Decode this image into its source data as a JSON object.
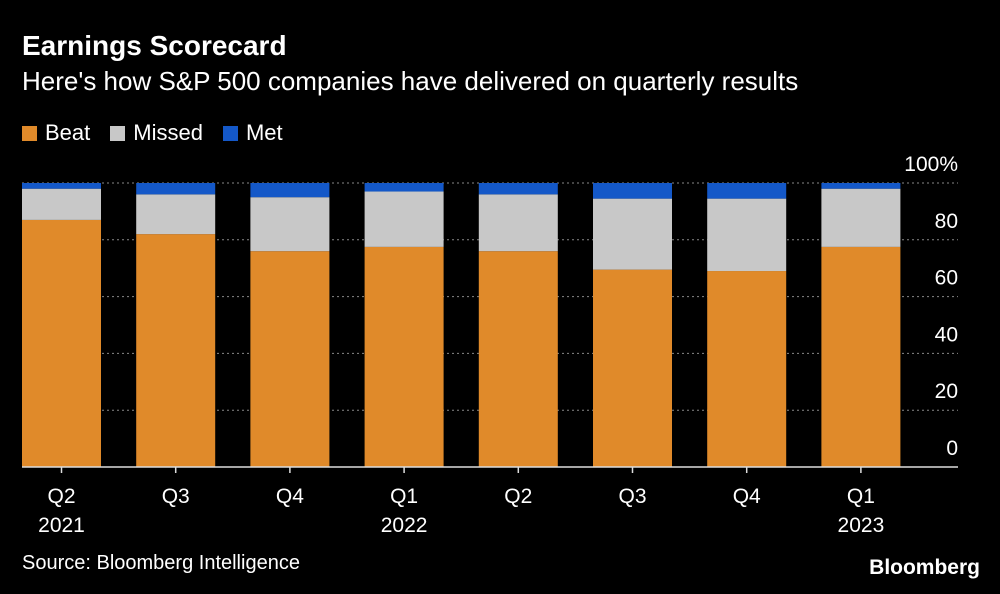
{
  "header": {
    "title": "Earnings Scorecard",
    "subtitle": "Here's how S&P 500 companies have delivered on quarterly results"
  },
  "legend": {
    "items": [
      {
        "label": "Beat",
        "color": "#e08a2a"
      },
      {
        "label": "Missed",
        "color": "#c8c8c8"
      },
      {
        "label": "Met",
        "color": "#1458c8"
      }
    ]
  },
  "footer": {
    "source": "Source: Bloomberg Intelligence",
    "brand": "Bloomberg"
  },
  "chart_data": {
    "type": "bar",
    "stacked": true,
    "title": "Earnings Scorecard",
    "subtitle": "Here's how S&P 500 companies have delivered on quarterly results",
    "xlabel": "",
    "ylabel": "",
    "ylim": [
      0,
      100
    ],
    "yticks": [
      0,
      20,
      40,
      60,
      80,
      100
    ],
    "ytick_labels": [
      "0",
      "20",
      "40",
      "60",
      "80",
      "100%"
    ],
    "categories": [
      {
        "quarter": "Q2",
        "year": "2021"
      },
      {
        "quarter": "Q3",
        "year": ""
      },
      {
        "quarter": "Q4",
        "year": ""
      },
      {
        "quarter": "Q1",
        "year": "2022"
      },
      {
        "quarter": "Q2",
        "year": ""
      },
      {
        "quarter": "Q3",
        "year": ""
      },
      {
        "quarter": "Q4",
        "year": ""
      },
      {
        "quarter": "Q1",
        "year": "2023"
      }
    ],
    "series": [
      {
        "name": "Beat",
        "color": "#e08a2a",
        "values": [
          87,
          82,
          76,
          77.5,
          76,
          69.5,
          69,
          77.5
        ]
      },
      {
        "name": "Missed",
        "color": "#c8c8c8",
        "values": [
          11,
          14,
          19,
          19.5,
          20,
          25,
          25.5,
          20.5
        ]
      },
      {
        "name": "Met",
        "color": "#1458c8",
        "values": [
          2,
          4,
          5,
          3,
          4,
          5.5,
          5.5,
          2
        ]
      }
    ]
  }
}
